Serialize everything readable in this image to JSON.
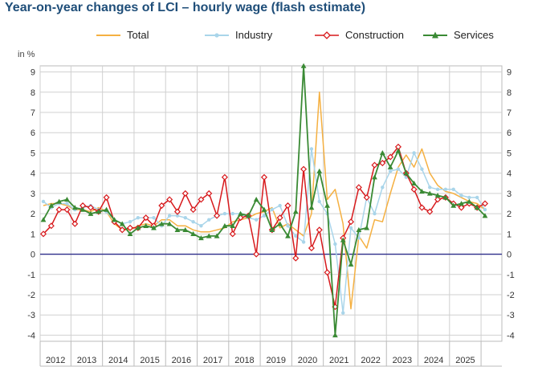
{
  "chart_data": {
    "type": "line",
    "title": "Year-on-year changes of LCI – hourly wage (flash estimate)",
    "ylabel": "in %",
    "ylim": [
      -4.3,
      9.3
    ],
    "yticks": [
      "-4",
      "-3",
      "-2",
      "-1",
      "0",
      "1",
      "2",
      "3",
      "4",
      "5",
      "6",
      "7",
      "8",
      "9"
    ],
    "x_start_quarter": "2012 Q1",
    "x_end_quarter": "2025 Q1",
    "year_labels": [
      "2012",
      "2013",
      "2014",
      "2015",
      "2016",
      "2017",
      "2018",
      "2019",
      "2020",
      "2021",
      "2022",
      "2023",
      "2024",
      "2025"
    ],
    "grid": true,
    "legend_position": "top",
    "series": [
      {
        "name": "Total",
        "color": "#f5b041",
        "marker": "none",
        "values": [
          2.4,
          2.5,
          2.5,
          2.4,
          2.2,
          2.2,
          2.1,
          2.3,
          2.1,
          1.5,
          1.2,
          1.2,
          1.4,
          1.5,
          1.4,
          1.7,
          1.7,
          1.4,
          1.4,
          1.2,
          1.1,
          1.1,
          1.2,
          1.3,
          1.6,
          1.7,
          1.8,
          2.0,
          2.1,
          2.3,
          1.3,
          1.5,
          1.2,
          0.9,
          2.0,
          8.0,
          2.7,
          3.2,
          1.5,
          -2.7,
          0.9,
          0.3,
          1.7,
          1.6,
          3.0,
          4.3,
          4.9,
          4.3,
          5.2,
          4.0,
          3.4,
          3.1,
          3.0,
          2.8,
          2.6,
          2.5,
          2.2
        ]
      },
      {
        "name": "Industry",
        "color": "#a9d5ea",
        "marker": "circle",
        "values": [
          2.6,
          2.3,
          2.5,
          2.5,
          2.2,
          2.3,
          2.4,
          2.2,
          2.1,
          1.7,
          1.5,
          1.6,
          1.8,
          1.8,
          1.8,
          1.4,
          1.9,
          1.9,
          1.8,
          1.6,
          1.4,
          1.7,
          1.9,
          2.0,
          2.0,
          2.0,
          1.8,
          1.7,
          1.9,
          2.2,
          2.4,
          1.4,
          0.9,
          0.6,
          5.2,
          2.6,
          2.0,
          0.5,
          -2.9,
          1.3,
          0.8,
          2.8,
          2.0,
          3.3,
          4.1,
          4.2,
          3.8,
          5.0,
          4.2,
          3.3,
          3.2,
          3.2,
          3.2,
          2.9,
          2.8,
          2.8,
          2.2
        ]
      },
      {
        "name": "Construction",
        "color": "#d7191c",
        "marker": "diamond",
        "values": [
          1.0,
          1.4,
          2.2,
          2.2,
          1.5,
          2.4,
          2.3,
          2.1,
          2.8,
          1.6,
          1.2,
          1.3,
          1.3,
          1.8,
          1.4,
          2.4,
          2.7,
          2.1,
          3.0,
          2.2,
          2.7,
          3.0,
          1.9,
          3.8,
          1.0,
          1.8,
          1.9,
          0.0,
          3.8,
          1.2,
          1.8,
          2.4,
          -0.2,
          4.2,
          0.3,
          1.2,
          -0.9,
          -2.6,
          0.8,
          1.6,
          3.3,
          2.8,
          4.4,
          4.5,
          4.8,
          5.3,
          4.0,
          3.2,
          2.3,
          2.1,
          2.7,
          2.8,
          2.5,
          2.3,
          2.5,
          2.3,
          2.5
        ]
      },
      {
        "name": "Services",
        "color": "#3a8a34",
        "marker": "triangle",
        "values": [
          1.7,
          2.4,
          2.6,
          2.7,
          2.3,
          2.2,
          2.0,
          2.1,
          2.2,
          1.7,
          1.5,
          1.0,
          1.3,
          1.4,
          1.3,
          1.5,
          1.5,
          1.2,
          1.2,
          1.0,
          0.8,
          0.9,
          0.9,
          1.4,
          1.4,
          2.0,
          1.9,
          2.7,
          2.2,
          1.2,
          1.5,
          0.9,
          2.1,
          9.3,
          2.3,
          4.1,
          2.4,
          -4.0,
          0.7,
          -0.5,
          1.2,
          1.3,
          3.8,
          5.0,
          4.3,
          5.1,
          4.0,
          3.5,
          3.1,
          3.0,
          2.9,
          2.8,
          2.4,
          2.5,
          2.6,
          2.3,
          1.9
        ]
      }
    ]
  }
}
